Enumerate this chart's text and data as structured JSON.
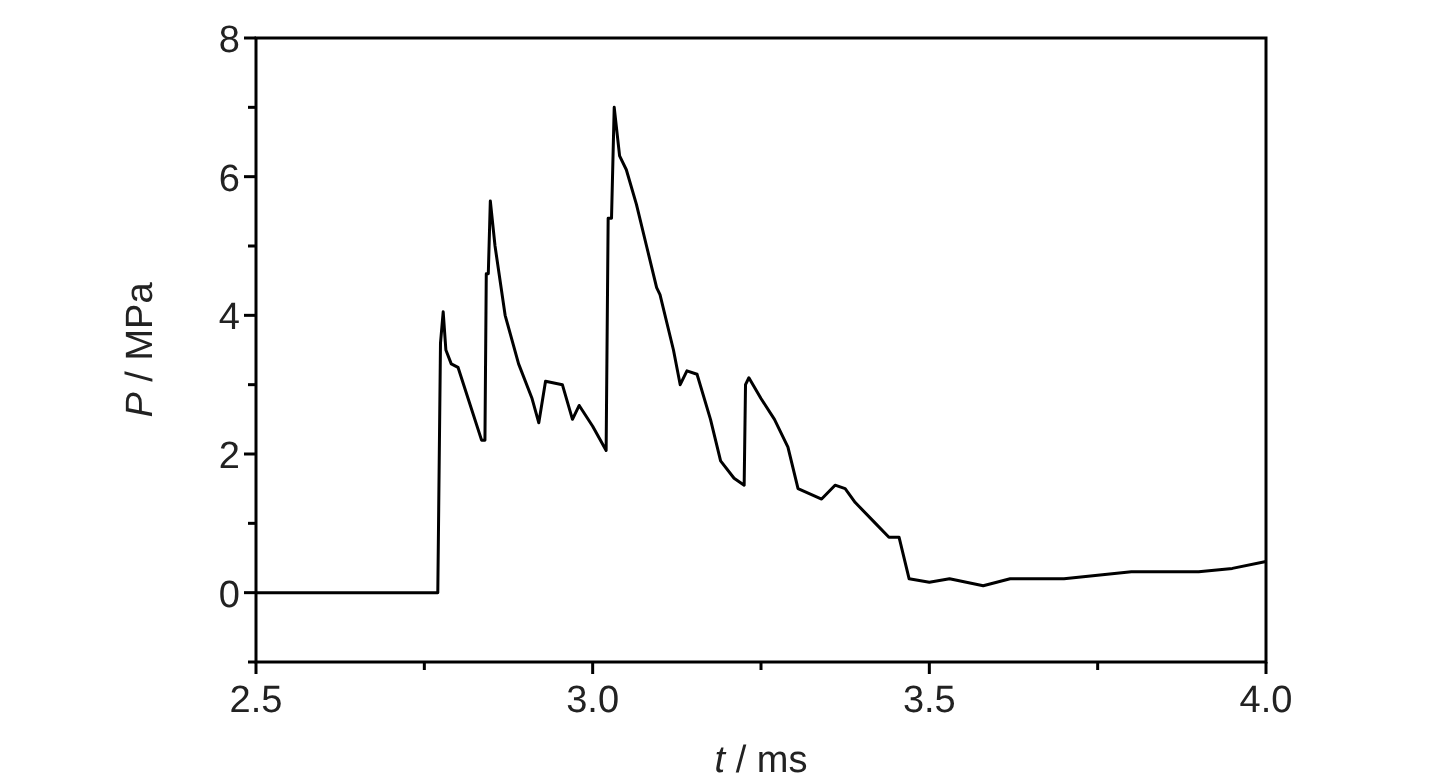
{
  "chart_data": {
    "type": "line",
    "xlabel": "t / ms",
    "ylabel": "P / MPa",
    "xlim": [
      2.5,
      4.0
    ],
    "ylim": [
      -1,
      8
    ],
    "xticks": [
      {
        "value": 2.5,
        "label": "2.5"
      },
      {
        "value": 2.75,
        "label": null
      },
      {
        "value": 3.0,
        "label": "3.0"
      },
      {
        "value": 3.25,
        "label": null
      },
      {
        "value": 3.5,
        "label": "3.5"
      },
      {
        "value": 3.75,
        "label": null
      },
      {
        "value": 4.0,
        "label": "4.0"
      }
    ],
    "yticks": [
      {
        "value": -1,
        "label": null
      },
      0,
      {
        "value": 1,
        "label": null
      },
      2,
      {
        "value": 3,
        "label": null
      },
      4,
      {
        "value": 5,
        "label": null
      },
      6,
      {
        "value": 7,
        "label": null
      },
      8
    ],
    "grid": false,
    "marker": "none",
    "line_style": "solid",
    "series": [
      {
        "color": "#000000",
        "x": [
          2.5,
          2.6,
          2.7,
          2.77,
          2.774,
          2.778,
          2.782,
          2.79,
          2.8,
          2.815,
          2.835,
          2.84,
          2.842,
          2.845,
          2.848,
          2.855,
          2.87,
          2.89,
          2.91,
          2.92,
          2.93,
          2.955,
          2.97,
          2.98,
          3.0,
          3.02,
          3.023,
          3.028,
          3.032,
          3.04,
          3.05,
          3.065,
          3.08,
          3.095,
          3.1,
          3.12,
          3.13,
          3.14,
          3.155,
          3.175,
          3.19,
          3.21,
          3.225,
          3.227,
          3.232,
          3.25,
          3.27,
          3.29,
          3.305,
          3.34,
          3.36,
          3.375,
          3.39,
          3.42,
          3.44,
          3.455,
          3.47,
          3.5,
          3.53,
          3.58,
          3.62,
          3.7,
          3.8,
          3.9,
          3.95,
          4.0
        ],
        "values": [
          0,
          0,
          0,
          0,
          3.6,
          4.05,
          3.5,
          3.3,
          3.25,
          2.8,
          2.2,
          2.2,
          4.6,
          4.6,
          5.65,
          5.0,
          4.0,
          3.3,
          2.8,
          2.45,
          3.05,
          3.0,
          2.5,
          2.7,
          2.4,
          2.05,
          5.4,
          5.4,
          7.0,
          6.3,
          6.1,
          5.6,
          5.0,
          4.4,
          4.3,
          3.5,
          3.0,
          3.2,
          3.15,
          2.5,
          1.9,
          1.65,
          1.55,
          3.0,
          3.1,
          2.8,
          2.5,
          2.1,
          1.5,
          1.35,
          1.55,
          1.5,
          1.3,
          1.0,
          0.8,
          0.8,
          0.2,
          0.15,
          0.2,
          0.1,
          0.2,
          0.2,
          0.3,
          0.3,
          0.35,
          0.45
        ]
      }
    ]
  }
}
